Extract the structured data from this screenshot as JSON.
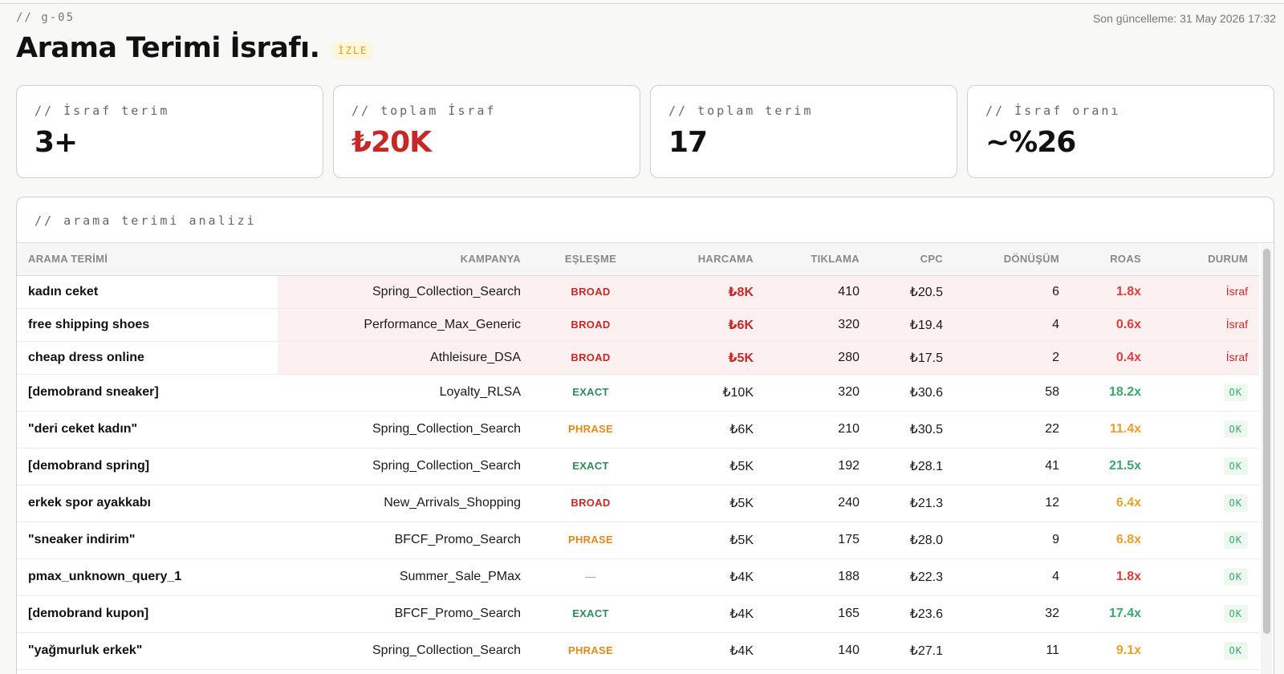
{
  "header": {
    "tag": "// g-05",
    "last_update": "Son güncelleme: 31 May 2026 17:32",
    "title": "Arama Terimi İsrafı.",
    "badge": "İZLE"
  },
  "kpis": [
    {
      "label": "// İsraf terim",
      "value": "3+",
      "accent": "#111111"
    },
    {
      "label": "// toplam İsraf",
      "value": "₺20K",
      "accent": "#c62828"
    },
    {
      "label": "// toplam terim",
      "value": "17",
      "accent": "#111111"
    },
    {
      "label": "// İsraf oranı",
      "value": "~%26",
      "accent": "#111111"
    }
  ],
  "table": {
    "title": "// arama terimi analizi",
    "columns": [
      "ARAMA TERİMİ",
      "KAMPANYA",
      "EŞLEŞME",
      "HARCAMA",
      "TIKLAMA",
      "CPC",
      "DÖNÜŞÜM",
      "ROAS",
      "DURUM"
    ],
    "rows": [
      {
        "term": "kadın ceket",
        "campaign": "Spring_Collection_Search",
        "match": "BROAD",
        "spend": "₺8K",
        "clicks": "410",
        "cpc": "₺20.5",
        "conversions": "6",
        "roas": "1.8x",
        "roas_level": "red",
        "status": "İsraf",
        "waste": true
      },
      {
        "term": "free shipping shoes",
        "campaign": "Performance_Max_Generic",
        "match": "BROAD",
        "spend": "₺6K",
        "clicks": "320",
        "cpc": "₺19.4",
        "conversions": "4",
        "roas": "0.6x",
        "roas_level": "red",
        "status": "İsraf",
        "waste": true
      },
      {
        "term": "cheap dress online",
        "campaign": "Athleisure_DSA",
        "match": "BROAD",
        "spend": "₺5K",
        "clicks": "280",
        "cpc": "₺17.5",
        "conversions": "2",
        "roas": "0.4x",
        "roas_level": "red",
        "status": "İsraf",
        "waste": true
      },
      {
        "term": "[demobrand sneaker]",
        "campaign": "Loyalty_RLSA",
        "match": "EXACT",
        "spend": "₺10K",
        "clicks": "320",
        "cpc": "₺30.6",
        "conversions": "58",
        "roas": "18.2x",
        "roas_level": "green",
        "status": "OK",
        "waste": false
      },
      {
        "term": "\"deri ceket kadın\"",
        "campaign": "Spring_Collection_Search",
        "match": "PHRASE",
        "spend": "₺6K",
        "clicks": "210",
        "cpc": "₺30.5",
        "conversions": "22",
        "roas": "11.4x",
        "roas_level": "orange",
        "status": "OK",
        "waste": false
      },
      {
        "term": "[demobrand spring]",
        "campaign": "Spring_Collection_Search",
        "match": "EXACT",
        "spend": "₺5K",
        "clicks": "192",
        "cpc": "₺28.1",
        "conversions": "41",
        "roas": "21.5x",
        "roas_level": "green",
        "status": "OK",
        "waste": false
      },
      {
        "term": "erkek spor ayakkabı",
        "campaign": "New_Arrivals_Shopping",
        "match": "BROAD",
        "spend": "₺5K",
        "clicks": "240",
        "cpc": "₺21.3",
        "conversions": "12",
        "roas": "6.4x",
        "roas_level": "orange",
        "status": "OK",
        "waste": false
      },
      {
        "term": "\"sneaker indirim\"",
        "campaign": "BFCF_Promo_Search",
        "match": "PHRASE",
        "spend": "₺5K",
        "clicks": "175",
        "cpc": "₺28.0",
        "conversions": "9",
        "roas": "6.8x",
        "roas_level": "orange",
        "status": "OK",
        "waste": false
      },
      {
        "term": "pmax_unknown_query_1",
        "campaign": "Summer_Sale_PMax",
        "match": "—",
        "spend": "₺4K",
        "clicks": "188",
        "cpc": "₺22.3",
        "conversions": "4",
        "roas": "1.8x",
        "roas_level": "red",
        "status": "OK",
        "waste": false
      },
      {
        "term": "[demobrand kupon]",
        "campaign": "BFCF_Promo_Search",
        "match": "EXACT",
        "spend": "₺4K",
        "clicks": "165",
        "cpc": "₺23.6",
        "conversions": "32",
        "roas": "17.4x",
        "roas_level": "green",
        "status": "OK",
        "waste": false
      },
      {
        "term": "\"yağmurluk erkek\"",
        "campaign": "Spring_Collection_Search",
        "match": "PHRASE",
        "spend": "₺4K",
        "clicks": "140",
        "cpc": "₺27.1",
        "conversions": "11",
        "roas": "9.1x",
        "roas_level": "orange",
        "status": "OK",
        "waste": false
      }
    ]
  },
  "colors": {
    "waste_red": "#c62828",
    "ok_green": "#3aa86a",
    "warn_orange": "#e8a22c",
    "badge_yellow": "#d9a400"
  }
}
